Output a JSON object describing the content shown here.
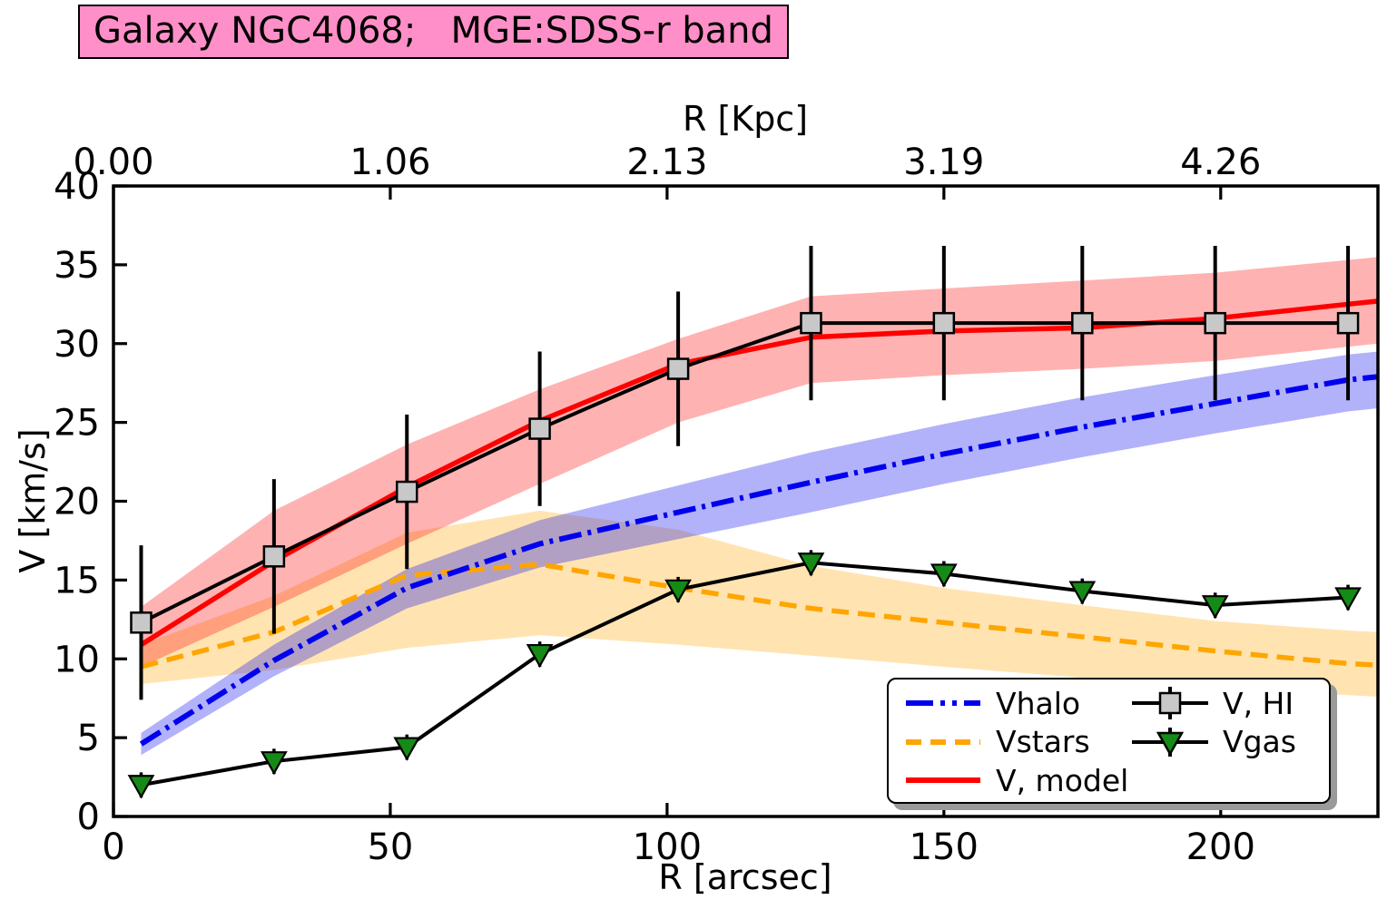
{
  "title": {
    "text": "Galaxy NGC4068;   MGE:SDSS-r band"
  },
  "axes": {
    "top_label": "R [Kpc]",
    "bottom_label": "R [arcsec]",
    "left_label": "V [km/s]"
  },
  "legend": {
    "col1": [
      {
        "label": "Vhalo"
      },
      {
        "label": "Vstars"
      },
      {
        "label": "V, model"
      }
    ],
    "col2": [
      {
        "label": "V, HI"
      },
      {
        "label": "Vgas"
      }
    ]
  },
  "colors": {
    "title_bg": "#FF8FC8",
    "halo": "#0000EE",
    "stars": "#FFA500",
    "model": "#FF0000",
    "hi_marker": "#C8C8C8",
    "gas_marker": "#168A16",
    "data_black": "#000000"
  },
  "chart_data": {
    "type": "line",
    "title": "Galaxy NGC4068;   MGE:SDSS-r band",
    "xlabel_bottom": "R [arcsec]",
    "xlabel_top": "R [Kpc]",
    "ylabel": "V [km/s]",
    "xlim": [
      0,
      228.4
    ],
    "ylim": [
      0,
      40
    ],
    "x_ticks": [
      0,
      50,
      100,
      150,
      200
    ],
    "x_ticks_top_labels": [
      "0.00",
      "1.06",
      "2.13",
      "3.19",
      "4.26"
    ],
    "y_ticks": [
      0,
      5,
      10,
      15,
      20,
      25,
      30,
      35,
      40
    ],
    "grid": false,
    "legend_position": "lower right",
    "R_model": [
      5,
      29,
      53,
      77,
      102,
      126,
      150,
      175,
      199,
      223,
      228.4
    ],
    "model": {
      "name": "V, model",
      "values": [
        10.9,
        16.2,
        20.9,
        25.1,
        28.7,
        30.4,
        30.8,
        31.0,
        31.6,
        32.5,
        32.7
      ],
      "band_upper": [
        13.3,
        19.4,
        23.6,
        27.1,
        30.3,
        33.0,
        33.5,
        34.0,
        34.5,
        35.3,
        35.5
      ],
      "band_lower": [
        9.5,
        13.3,
        17.3,
        21.1,
        25.0,
        27.5,
        28.0,
        28.4,
        28.9,
        29.8,
        30.0
      ]
    },
    "halo": {
      "name": "Vhalo",
      "values": [
        4.6,
        9.9,
        14.5,
        17.3,
        19.3,
        21.2,
        23.0,
        24.7,
        26.2,
        27.7,
        27.9
      ],
      "band_upper": [
        5.3,
        10.9,
        15.7,
        18.8,
        21.0,
        23.1,
        24.9,
        26.6,
        28.0,
        29.3,
        29.5
      ],
      "band_lower": [
        3.9,
        8.9,
        13.2,
        15.8,
        17.6,
        19.3,
        21.1,
        22.8,
        24.3,
        25.7,
        25.9
      ]
    },
    "stars": {
      "name": "Vstars",
      "values": [
        9.5,
        11.7,
        15.3,
        16.0,
        14.5,
        13.2,
        12.3,
        11.4,
        10.5,
        9.7,
        9.6
      ],
      "band_upper": [
        10.9,
        14.0,
        18.0,
        19.4,
        18.2,
        15.9,
        14.5,
        13.4,
        12.4,
        11.8,
        11.7
      ],
      "band_lower": [
        8.4,
        9.3,
        10.7,
        11.5,
        10.9,
        10.2,
        9.5,
        8.8,
        8.2,
        7.7,
        7.6
      ]
    },
    "hi": {
      "name": "V, HI",
      "R": [
        5,
        29,
        53,
        77,
        102,
        126,
        150,
        175,
        199,
        223
      ],
      "values": [
        12.3,
        16.5,
        20.6,
        24.6,
        28.4,
        31.3,
        31.3,
        31.3,
        31.3,
        31.3
      ],
      "err": 4.9
    },
    "gas": {
      "name": "Vgas",
      "R": [
        5,
        29,
        53,
        77,
        102,
        126,
        150,
        175,
        199,
        223
      ],
      "values": [
        2.0,
        3.5,
        4.4,
        10.3,
        14.4,
        16.1,
        15.4,
        14.3,
        13.4,
        13.9
      ],
      "err": 0.8
    }
  }
}
